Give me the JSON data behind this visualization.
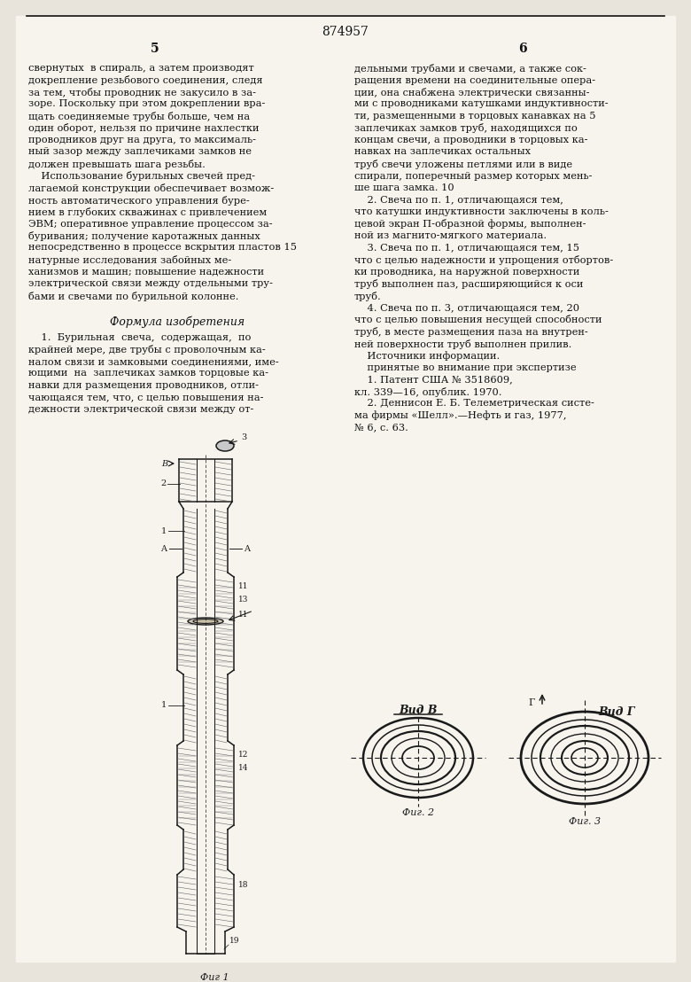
{
  "page_title": "874957",
  "background_color": "#f2f0eb",
  "text_color": "#111111",
  "left_col_lines": [
    "свернутых  в спираль, а затем производят",
    "докрепление резьбового соединения, следя",
    "за тем, чтобы проводник не закусило в за-",
    "зоре. Поскольку при этом докреплении вра-",
    "щать соединяемые трубы больше, чем на",
    "один оборот, нельзя по причине нахлестки",
    "проводников друг на друга, то максималь-",
    "ный зазор между заплечиками замков не",
    "должен превышать шага резьбы.",
    "    Использование бурильных свечей пред-",
    "лагаемой конструкции обеспечивает возмож-",
    "ность автоматического управления буре-",
    "нием в глубоких скважинах с привлечением",
    "ЭВМ; оперативное управление процессом за-",
    "буривания; получение каротажных данных",
    "непосредственно в процессе вскрытия пластов 15",
    "натурные исследования забойных ме-",
    "ханизмов и машин; повышение надежности",
    "электрической связи между отдельными тру-",
    "бами и свечами по бурильной колонне."
  ],
  "formula_header": "Формула изобретения",
  "formula_lines": [
    "    1.  Бурильная  свеча,  содержащая,  по",
    "крайней мере, две трубы с проволочным ка-",
    "налом связи и замковыми соединениями, име-",
    "ющими  на  заплечиках замков торцовые ка-",
    "навки для размещения проводников, отли-",
    "чающаяся тем, что, с целью повышения на-",
    "дежности электрической связи между от-"
  ],
  "right_col_lines": [
    "дельными трубами и свечами, а также сок-",
    "ращения времени на соединительные опера-",
    "ции, она снабжена электрически связанны-",
    "ми с проводниками катушками индуктивности-",
    "ти, размещенными в торцовых канавках на 5",
    "заплечиках замков труб, находящихся по",
    "концам свечи, а проводники в торцовых ка-",
    "навках на заплечиках остальных",
    "труб свечи уложены петлями или в виде",
    "спирали, поперечный размер которых мень-",
    "ше шага замка. 10",
    "    2. Свеча по п. 1, отличающаяся тем,",
    "что катушки индуктивности заключены в коль-",
    "цевой экран П-образной формы, выполнен-",
    "ной из магнито-мягкого материала.",
    "    3. Свеча по п. 1, отличающаяся тем, 15",
    "что с целью надежности и упрощения отбортов-",
    "ки проводника, на наружной поверхности",
    "труб выполнен паз, расширяющийся к оси",
    "труб.",
    "    4. Свеча по п. 3, отличающаяся тем, 20",
    "что с целью повышения несущей способности",
    "труб, в месте размещения паза на внутрен-",
    "ней поверхности труб выполнен прилив.",
    "    Источники информации.",
    "    принятые во внимание при экспертизе",
    "    1. Патент США № 3518609,",
    "кл. 339—16, опублик. 1970.",
    "    2. Деннисон Е. Б. Телеметрическая систе-",
    "ма фирмы «Шелл».—Нефть и газ, 1977,",
    "№ 6, с. 63."
  ]
}
